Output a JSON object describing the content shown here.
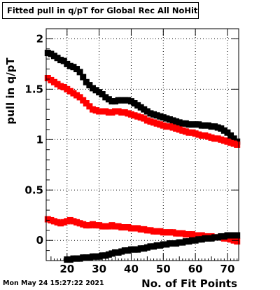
{
  "title": "Fitted pull in q/pT for Global Rec All NoHits",
  "timestamp": "Mon May 24 15:27:22 2021",
  "chart_data": {
    "type": "scatter",
    "title": "Fitted pull in q/pT for Global Rec All NoHits",
    "xlabel": "No. of Fit Points",
    "ylabel": "pull in q/pT",
    "xlim": [
      13.5,
      73.5
    ],
    "ylim": [
      -0.2,
      2.1
    ],
    "x_ticks": [
      "20",
      "30",
      "40",
      "50",
      "60",
      "70"
    ],
    "y_ticks": [
      "0",
      "0.5",
      "1",
      "1.5",
      "2"
    ],
    "grid": true,
    "marker": "square",
    "colors": {
      "black": "#000000",
      "red": "#ff0000"
    },
    "series": [
      {
        "color": "#000000",
        "x": [
          14,
          15,
          16,
          17,
          18,
          19,
          20,
          21,
          22,
          23,
          24,
          25,
          26,
          27,
          28,
          29,
          30,
          31,
          32,
          33,
          34,
          35,
          36,
          37,
          38,
          39,
          40,
          41,
          42,
          43,
          44,
          45,
          46,
          47,
          48,
          49,
          50,
          51,
          52,
          53,
          54,
          55,
          56,
          57,
          58,
          59,
          60,
          61,
          62,
          63,
          64,
          65,
          66,
          67,
          68,
          69,
          70,
          71,
          72,
          73
        ],
        "values": [
          1.86,
          1.85,
          1.83,
          1.81,
          1.79,
          1.78,
          1.75,
          1.73,
          1.72,
          1.7,
          1.67,
          1.62,
          1.57,
          1.54,
          1.51,
          1.49,
          1.47,
          1.45,
          1.42,
          1.4,
          1.38,
          1.38,
          1.39,
          1.39,
          1.39,
          1.39,
          1.38,
          1.36,
          1.34,
          1.32,
          1.3,
          1.28,
          1.26,
          1.25,
          1.24,
          1.23,
          1.22,
          1.21,
          1.2,
          1.19,
          1.18,
          1.17,
          1.16,
          1.16,
          1.15,
          1.15,
          1.15,
          1.15,
          1.14,
          1.14,
          1.14,
          1.13,
          1.13,
          1.12,
          1.11,
          1.09,
          1.07,
          1.04,
          1.01,
          0.98
        ]
      },
      {
        "color": "#ff0000",
        "x": [
          14,
          15,
          16,
          17,
          18,
          19,
          20,
          21,
          22,
          23,
          24,
          25,
          26,
          27,
          28,
          29,
          30,
          31,
          32,
          33,
          34,
          35,
          36,
          37,
          38,
          39,
          40,
          41,
          42,
          43,
          44,
          45,
          46,
          47,
          48,
          49,
          50,
          51,
          52,
          53,
          54,
          55,
          56,
          57,
          58,
          59,
          60,
          61,
          62,
          63,
          64,
          65,
          66,
          67,
          68,
          69,
          70,
          71,
          72,
          73
        ],
        "values": [
          1.61,
          1.59,
          1.57,
          1.55,
          1.53,
          1.52,
          1.5,
          1.48,
          1.46,
          1.44,
          1.42,
          1.39,
          1.36,
          1.33,
          1.3,
          1.29,
          1.28,
          1.28,
          1.28,
          1.27,
          1.27,
          1.28,
          1.28,
          1.27,
          1.27,
          1.26,
          1.25,
          1.24,
          1.23,
          1.22,
          1.21,
          1.19,
          1.18,
          1.17,
          1.16,
          1.15,
          1.14,
          1.13,
          1.13,
          1.12,
          1.11,
          1.1,
          1.09,
          1.08,
          1.07,
          1.07,
          1.06,
          1.05,
          1.04,
          1.04,
          1.03,
          1.02,
          1.01,
          1.01,
          1.0,
          0.99,
          0.98,
          0.97,
          0.96,
          0.95
        ]
      },
      {
        "color": "#ff0000",
        "x": [
          14,
          15,
          16,
          17,
          18,
          19,
          20,
          21,
          22,
          23,
          24,
          25,
          26,
          27,
          28,
          29,
          30,
          31,
          32,
          33,
          34,
          35,
          36,
          37,
          38,
          39,
          40,
          41,
          42,
          43,
          44,
          45,
          46,
          47,
          48,
          49,
          50,
          51,
          52,
          53,
          54,
          55,
          56,
          57,
          58,
          59,
          60,
          61,
          62,
          63,
          64,
          65,
          66,
          67,
          68,
          69,
          70,
          71,
          72,
          73
        ],
        "values": [
          0.21,
          0.2,
          0.19,
          0.18,
          0.17,
          0.18,
          0.19,
          0.2,
          0.19,
          0.18,
          0.17,
          0.16,
          0.15,
          0.15,
          0.16,
          0.15,
          0.15,
          0.14,
          0.14,
          0.14,
          0.15,
          0.14,
          0.14,
          0.13,
          0.13,
          0.13,
          0.12,
          0.12,
          0.12,
          0.11,
          0.11,
          0.1,
          0.1,
          0.09,
          0.09,
          0.09,
          0.08,
          0.08,
          0.08,
          0.08,
          0.07,
          0.07,
          0.07,
          0.06,
          0.06,
          0.06,
          0.05,
          0.05,
          0.05,
          0.04,
          0.04,
          0.04,
          0.03,
          0.03,
          0.03,
          0.02,
          0.02,
          0.01,
          0.0,
          -0.01
        ]
      },
      {
        "color": "#000000",
        "x": [
          20,
          21,
          22,
          23,
          24,
          25,
          26,
          27,
          28,
          29,
          30,
          31,
          32,
          33,
          34,
          35,
          36,
          37,
          38,
          39,
          40,
          41,
          42,
          43,
          44,
          45,
          46,
          47,
          48,
          49,
          50,
          51,
          52,
          53,
          54,
          55,
          56,
          57,
          58,
          59,
          60,
          61,
          62,
          63,
          64,
          65,
          66,
          67,
          68,
          69,
          70,
          71,
          72,
          73
        ],
        "values": [
          -0.19,
          -0.19,
          -0.18,
          -0.18,
          -0.18,
          -0.17,
          -0.17,
          -0.17,
          -0.16,
          -0.16,
          -0.16,
          -0.15,
          -0.15,
          -0.14,
          -0.13,
          -0.12,
          -0.12,
          -0.11,
          -0.1,
          -0.1,
          -0.09,
          -0.09,
          -0.09,
          -0.08,
          -0.08,
          -0.07,
          -0.06,
          -0.06,
          -0.05,
          -0.05,
          -0.04,
          -0.04,
          -0.03,
          -0.03,
          -0.03,
          -0.02,
          -0.02,
          -0.01,
          -0.01,
          0.0,
          0.0,
          0.01,
          0.01,
          0.02,
          0.02,
          0.02,
          0.03,
          0.03,
          0.04,
          0.04,
          0.05,
          0.05,
          0.05,
          0.05
        ]
      }
    ]
  }
}
